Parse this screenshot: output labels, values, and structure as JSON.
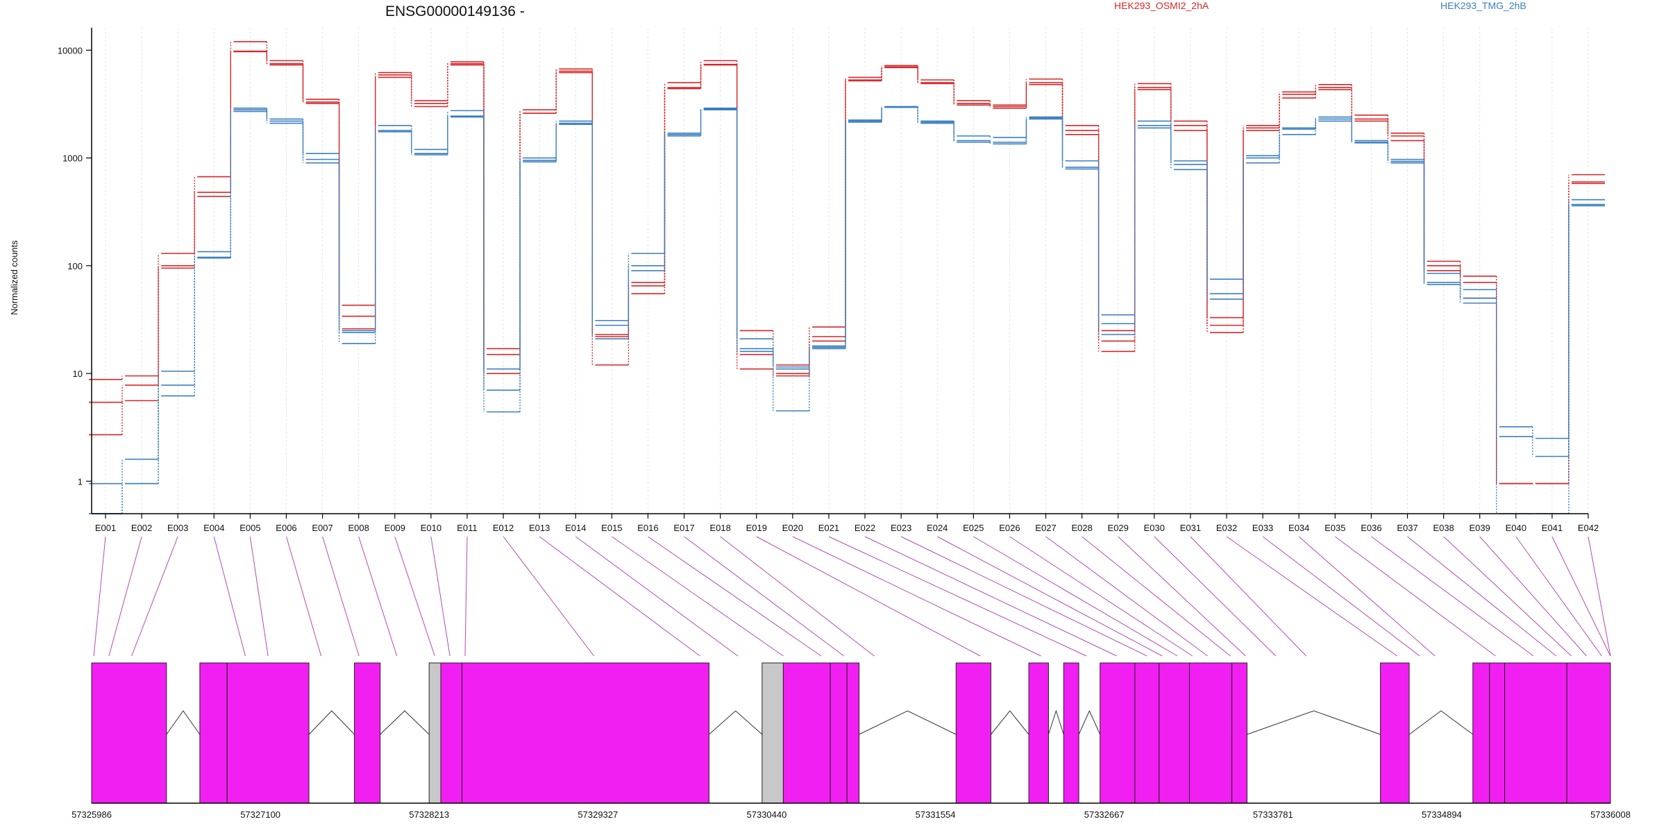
{
  "chart_data": {
    "type": "line",
    "title": "ENSG00000149136 -",
    "ylabel": "Normalized counts",
    "yscale": "log",
    "ylim": [
      0.5,
      15000
    ],
    "y_ticks": [
      "1",
      "10",
      "100",
      "1000",
      "10000"
    ],
    "x_ticks": [
      "E001",
      "E002",
      "E003",
      "E004",
      "E005",
      "E006",
      "E007",
      "E008",
      "E009",
      "E010",
      "E011",
      "E012",
      "E013",
      "E014",
      "E015",
      "E016",
      "E017",
      "E018",
      "E019",
      "E020",
      "E021",
      "E022",
      "E023",
      "E024",
      "E025",
      "E026",
      "E027",
      "E028",
      "E029",
      "E030",
      "E031",
      "E032",
      "E033",
      "E034",
      "E035",
      "E036",
      "E037",
      "E038",
      "E039",
      "E040",
      "E041",
      "E042"
    ],
    "legend": [
      {
        "label": "HEK293_OSMI2_2hA",
        "color": "#d62728"
      },
      {
        "label": "HEK293_TMG_2hB",
        "color": "#3a7fbf"
      }
    ],
    "series": [
      {
        "group": 0,
        "values": [
          8.8,
          9.5,
          130,
          670,
          12000,
          8000,
          3500,
          43,
          6200,
          3400,
          7800,
          17,
          2800,
          6700,
          12,
          70,
          5000,
          8000,
          25,
          12,
          27,
          5600,
          7200,
          5300,
          3400,
          3100,
          5400,
          2000,
          16,
          4900,
          2200,
          33,
          2000,
          4100,
          4800,
          2500,
          1700,
          110,
          80,
          0.95,
          0.95,
          700
        ]
      },
      {
        "group": 0,
        "values": [
          5.4,
          7.8,
          100,
          480,
          9800,
          7500,
          3300,
          34,
          5900,
          3200,
          7500,
          15,
          2600,
          6400,
          23,
          55,
          4500,
          7400,
          15,
          10,
          22,
          5300,
          7000,
          5000,
          3200,
          3000,
          5000,
          1800,
          20,
          4500,
          2000,
          28,
          1900,
          3900,
          4500,
          2300,
          1600,
          100,
          70,
          0.95,
          0.95,
          600
        ]
      },
      {
        "group": 0,
        "values": [
          2.7,
          5.6,
          95,
          440,
          9700,
          7300,
          3200,
          26,
          5600,
          3000,
          7300,
          10,
          2600,
          6200,
          22,
          65,
          4400,
          7300,
          11,
          9.5,
          20,
          5200,
          6900,
          4900,
          3100,
          2900,
          4800,
          1650,
          25,
          4300,
          1800,
          24,
          1800,
          3600,
          4300,
          2200,
          1450,
          90,
          50,
          0.95,
          0.95,
          580
        ]
      },
      {
        "group": 1,
        "values": [
          0.5,
          0.95,
          10.5,
          135,
          2900,
          2300,
          1100,
          25,
          2000,
          1200,
          2750,
          11,
          1000,
          2200,
          31,
          130,
          1700,
          2900,
          21,
          11.5,
          18,
          2250,
          3000,
          2200,
          1600,
          1550,
          2400,
          940,
          35,
          2200,
          940,
          75,
          1050,
          1900,
          2400,
          1450,
          970,
          85,
          60,
          3.2,
          2.5,
          410
        ]
      },
      {
        "group": 1,
        "values": [
          0.95,
          1.6,
          7.8,
          120,
          2800,
          2200,
          970,
          24,
          1800,
          1100,
          2450,
          7,
          950,
          2100,
          28,
          100,
          1650,
          2850,
          17,
          11,
          17.5,
          2200,
          2950,
          2150,
          1450,
          1400,
          2350,
          820,
          29,
          2000,
          870,
          55,
          1000,
          1850,
          2300,
          1400,
          930,
          70,
          50,
          2.6,
          1.7,
          370
        ]
      },
      {
        "group": 1,
        "values": [
          0.5,
          0.95,
          6.2,
          118,
          2700,
          2100,
          900,
          19,
          1750,
          1070,
          2400,
          4.4,
          920,
          2050,
          21,
          90,
          1600,
          2800,
          16,
          4.5,
          17,
          2150,
          2950,
          2100,
          1400,
          1350,
          2300,
          790,
          23,
          1900,
          780,
          49,
          900,
          1650,
          2200,
          1380,
          900,
          67,
          45,
          0.5,
          0.5,
          360
        ]
      }
    ],
    "genomic_axis": {
      "ticks": [
        "57325986",
        "57327100",
        "57328213",
        "57329327",
        "57330440",
        "57331554",
        "57332667",
        "57333781",
        "57334894",
        "57336008"
      ],
      "range": [
        57325986,
        57336008
      ]
    },
    "exon_map": [
      57326000,
      57326100,
      57326250,
      57327000,
      57327150,
      57327500,
      57327750,
      57328000,
      57328250,
      57328350,
      57328450,
      57329300,
      57330000,
      57330250,
      57330550,
      57330800,
      57330950,
      57331150,
      57331850,
      57332250,
      57332550,
      57332750,
      57332950,
      57333050,
      57333150,
      57333250,
      57333350,
      57333500,
      57333600,
      57333800,
      57334000,
      57334600,
      57334750,
      57334850,
      57335250,
      57335500,
      57335650,
      57335750,
      57335850,
      57335950,
      57336008,
      57336008
    ],
    "gene_blocks": [
      {
        "start": 57325986,
        "end": 57326480,
        "color": "#f21ff2"
      },
      {
        "start": 57326700,
        "end": 57326880,
        "color": "#f21ff2"
      },
      {
        "start": 57326880,
        "end": 57327420,
        "color": "#f21ff2"
      },
      {
        "start": 57327720,
        "end": 57327890,
        "color": "#f21ff2"
      },
      {
        "start": 57328213,
        "end": 57328290,
        "color": "#c8c8c8"
      },
      {
        "start": 57328290,
        "end": 57328430,
        "color": "#f21ff2"
      },
      {
        "start": 57328430,
        "end": 57330060,
        "color": "#f21ff2"
      },
      {
        "start": 57330410,
        "end": 57330550,
        "color": "#c8c8c8"
      },
      {
        "start": 57330550,
        "end": 57330860,
        "color": "#f21ff2"
      },
      {
        "start": 57330860,
        "end": 57330970,
        "color": "#f21ff2"
      },
      {
        "start": 57330970,
        "end": 57331050,
        "color": "#f21ff2"
      },
      {
        "start": 57331690,
        "end": 57331920,
        "color": "#f21ff2"
      },
      {
        "start": 57332170,
        "end": 57332300,
        "color": "#f21ff2"
      },
      {
        "start": 57332400,
        "end": 57332500,
        "color": "#f21ff2"
      },
      {
        "start": 57332640,
        "end": 57332870,
        "color": "#f21ff2"
      },
      {
        "start": 57332870,
        "end": 57333030,
        "color": "#f21ff2"
      },
      {
        "start": 57333030,
        "end": 57333230,
        "color": "#f21ff2"
      },
      {
        "start": 57333230,
        "end": 57333510,
        "color": "#f21ff2"
      },
      {
        "start": 57333510,
        "end": 57333610,
        "color": "#f21ff2"
      },
      {
        "start": 57334490,
        "end": 57334680,
        "color": "#f21ff2"
      },
      {
        "start": 57335100,
        "end": 57335210,
        "color": "#f21ff2"
      },
      {
        "start": 57335210,
        "end": 57335310,
        "color": "#f21ff2"
      },
      {
        "start": 57335310,
        "end": 57335720,
        "color": "#f21ff2"
      },
      {
        "start": 57335720,
        "end": 57336008,
        "color": "#f21ff2"
      }
    ],
    "introns": [
      {
        "from": 57326480,
        "to": 57326700
      },
      {
        "from": 57327420,
        "to": 57327720
      },
      {
        "from": 57327890,
        "to": 57328213
      },
      {
        "from": 57330060,
        "to": 57330410
      },
      {
        "from": 57331050,
        "to": 57331690
      },
      {
        "from": 57331920,
        "to": 57332170
      },
      {
        "from": 57332300,
        "to": 57332400
      },
      {
        "from": 57332500,
        "to": 57332640
      },
      {
        "from": 57333610,
        "to": 57334490
      },
      {
        "from": 57334680,
        "to": 57335100
      }
    ]
  }
}
